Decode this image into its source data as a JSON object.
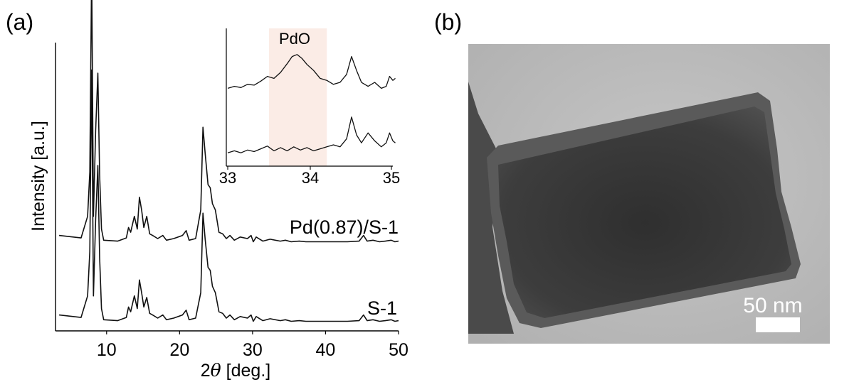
{
  "panel_a": {
    "label": "(a)",
    "chart_data": {
      "type": "line",
      "title": "",
      "xlabel_prefix": "2",
      "xlabel_symbol": "θ",
      "xlabel_suffix": " [deg.]",
      "ylabel": "Intensity [a.u.]",
      "xlim": [
        3,
        50
      ],
      "xticks": [
        10,
        20,
        30,
        40,
        50
      ],
      "y_ticks_labeled": false,
      "series": [
        {
          "name": "Pd(0.87)/S-1",
          "offset": 1,
          "x": [
            3.5,
            6.5,
            7.4,
            7.7,
            7.95,
            8.2,
            8.5,
            8.8,
            9.05,
            9.3,
            9.6,
            11.5,
            12.7,
            13.0,
            13.3,
            13.8,
            14.2,
            14.5,
            14.8,
            15.1,
            15.5,
            15.9,
            16.3,
            17.0,
            17.7,
            18.2,
            19.2,
            20.4,
            20.9,
            21.3,
            22.2,
            22.9,
            23.2,
            23.5,
            23.9,
            24.2,
            24.5,
            24.9,
            25.4,
            25.9,
            26.4,
            26.9,
            27.5,
            28.3,
            29.3,
            29.8,
            30.1,
            30.5,
            31.4,
            32.4,
            33.8,
            34.5,
            35.3,
            36.4,
            37.3,
            39.0,
            41.0,
            43.0,
            44.6,
            45.2,
            45.7,
            46.5,
            47.4,
            48.2,
            49.0,
            49.5,
            50.0
          ],
          "y": [
            0.3,
            0.22,
            0.9,
            2.3,
            8.7,
            0.9,
            3.6,
            5.4,
            2.2,
            0.5,
            0.15,
            0.12,
            0.22,
            0.55,
            0.4,
            0.9,
            0.5,
            1.5,
            1.1,
            0.55,
            0.9,
            0.35,
            0.3,
            0.2,
            0.3,
            0.15,
            0.2,
            0.3,
            0.45,
            0.15,
            0.2,
            1.1,
            3.7,
            2.9,
            1.9,
            1.8,
            1.3,
            1.1,
            0.4,
            0.35,
            0.2,
            0.3,
            0.15,
            0.25,
            0.2,
            0.3,
            0.1,
            0.25,
            0.12,
            0.18,
            0.12,
            0.15,
            0.1,
            0.12,
            0.1,
            0.1,
            0.1,
            0.1,
            0.12,
            0.3,
            0.12,
            0.15,
            0.1,
            0.12,
            0.15,
            0.1,
            0.12
          ]
        },
        {
          "name": "S-1",
          "offset": 0,
          "x": [
            3.5,
            6.5,
            7.4,
            7.7,
            7.95,
            8.2,
            8.5,
            8.8,
            9.05,
            9.3,
            9.6,
            11.5,
            12.7,
            13.0,
            13.3,
            13.8,
            14.2,
            14.5,
            14.8,
            15.1,
            15.5,
            15.9,
            16.3,
            17.0,
            17.7,
            18.2,
            19.2,
            20.4,
            20.9,
            21.3,
            22.2,
            22.9,
            23.2,
            23.5,
            23.9,
            24.2,
            24.5,
            24.9,
            25.4,
            25.9,
            26.4,
            26.9,
            27.5,
            28.3,
            29.3,
            29.8,
            30.1,
            30.5,
            31.4,
            32.4,
            33.8,
            34.5,
            35.3,
            36.4,
            37.3,
            39.0,
            41.0,
            43.0,
            44.6,
            45.2,
            45.7,
            46.5,
            47.4,
            48.2,
            49.0,
            49.5,
            50.0
          ],
          "y": [
            0.3,
            0.22,
            0.9,
            2.3,
            8.0,
            0.9,
            3.3,
            5.0,
            2.1,
            0.5,
            0.15,
            0.12,
            0.22,
            0.55,
            0.4,
            0.9,
            0.5,
            1.4,
            1.0,
            0.55,
            0.85,
            0.35,
            0.3,
            0.2,
            0.3,
            0.15,
            0.2,
            0.3,
            0.45,
            0.15,
            0.2,
            1.0,
            3.5,
            2.7,
            1.8,
            1.7,
            1.2,
            1.0,
            0.4,
            0.35,
            0.2,
            0.3,
            0.15,
            0.25,
            0.2,
            0.3,
            0.1,
            0.25,
            0.12,
            0.18,
            0.12,
            0.15,
            0.1,
            0.12,
            0.1,
            0.1,
            0.1,
            0.1,
            0.12,
            0.3,
            0.12,
            0.15,
            0.1,
            0.12,
            0.15,
            0.1,
            0.12
          ]
        }
      ],
      "inset": {
        "type": "line",
        "xlim": [
          33,
          35
        ],
        "xticks": [
          33,
          34,
          35
        ],
        "highlight": {
          "label": "PdO",
          "x_range": [
            33.5,
            34.2
          ],
          "color": "#fbece6"
        },
        "series": [
          {
            "name": "Pd(0.87)/S-1",
            "offset": 1,
            "x": [
              33.0,
              33.08,
              33.16,
              33.24,
              33.32,
              33.4,
              33.48,
              33.56,
              33.64,
              33.72,
              33.78,
              33.84,
              33.9,
              33.96,
              34.04,
              34.12,
              34.2,
              34.28,
              34.36,
              34.44,
              34.5,
              34.56,
              34.62,
              34.7,
              34.78,
              34.86,
              34.92,
              34.96,
              35.0,
              35.03
            ],
            "y": [
              0.1,
              0.15,
              0.12,
              0.2,
              0.18,
              0.28,
              0.4,
              0.35,
              0.5,
              0.72,
              0.9,
              0.95,
              0.85,
              0.7,
              0.55,
              0.35,
              0.3,
              0.2,
              0.25,
              0.45,
              0.9,
              0.55,
              0.25,
              0.15,
              0.25,
              0.1,
              0.15,
              0.4,
              0.3,
              0.35
            ]
          },
          {
            "name": "S-1",
            "offset": 0,
            "x": [
              33.0,
              33.08,
              33.16,
              33.24,
              33.32,
              33.4,
              33.48,
              33.56,
              33.64,
              33.72,
              33.8,
              33.88,
              33.96,
              34.04,
              34.12,
              34.2,
              34.28,
              34.36,
              34.44,
              34.5,
              34.56,
              34.62,
              34.7,
              34.78,
              34.86,
              34.92,
              34.96,
              35.0,
              35.03
            ],
            "y": [
              0.05,
              0.1,
              0.05,
              0.12,
              0.08,
              0.15,
              0.22,
              0.1,
              0.18,
              0.1,
              0.2,
              0.12,
              0.18,
              0.1,
              0.15,
              0.2,
              0.25,
              0.2,
              0.4,
              0.95,
              0.5,
              0.3,
              0.55,
              0.35,
              0.2,
              0.3,
              0.55,
              0.35,
              0.3
            ]
          }
        ]
      }
    }
  },
  "panel_b": {
    "label": "(b)",
    "scale_bar": {
      "label": "50 nm",
      "value_nm": 50
    },
    "colors": {
      "background": "#bdbdbd",
      "crystal": "#3a3a3a",
      "rim": "#6e6e6e"
    }
  }
}
